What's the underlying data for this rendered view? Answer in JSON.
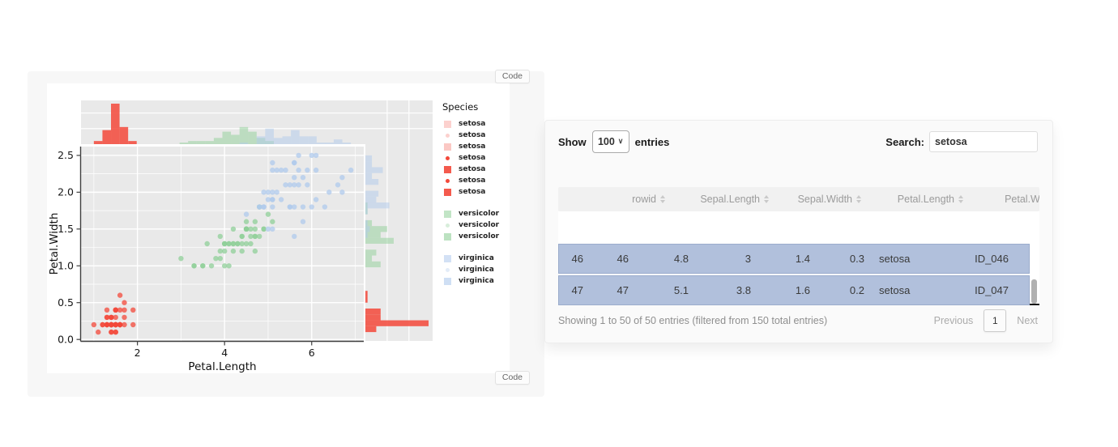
{
  "left_panel": {
    "code_button_label": "Code"
  },
  "chart_data": {
    "type": "scatter",
    "subtype": "scatter-with-marginal-histograms",
    "xlabel": "Petal.Length",
    "ylabel": "Petal.Width",
    "xlim": [
      0.705,
      7.195
    ],
    "ylim": [
      -0.02,
      2.62
    ],
    "x_ticks": [
      2,
      4,
      6
    ],
    "x_tick_labels": [
      "2",
      "4",
      "6"
    ],
    "x_minor": [
      1,
      3,
      5,
      7
    ],
    "y_ticks": [
      0.0,
      0.5,
      1.0,
      1.5,
      2.0,
      2.5
    ],
    "y_tick_labels": [
      "0.0",
      "0.5",
      "1.0",
      "1.5",
      "2.0",
      "2.5"
    ],
    "y_minor": [
      0.25,
      0.75,
      1.25,
      1.75,
      2.25
    ],
    "grid": true,
    "legend_title": "Species",
    "legend_position": "right",
    "colors": {
      "setosa": "#F3483A",
      "versicolor": "#8FCF98",
      "virginica": "#AFC9EC"
    },
    "marginals": {
      "bins": 30,
      "x_range": [
        1.0,
        6.9
      ],
      "y_range": [
        0.1,
        2.5
      ],
      "top_max_count": 26,
      "right_max_count": 29
    },
    "legend_items": [
      {
        "label": "setosa",
        "species": "setosa",
        "shape": "square",
        "opacity": 0.25,
        "gap_before": false
      },
      {
        "label": "setosa",
        "species": "setosa",
        "shape": "dot",
        "opacity": 0.25,
        "gap_before": false
      },
      {
        "label": "setosa",
        "species": "setosa",
        "shape": "square",
        "opacity": 0.3,
        "gap_before": false
      },
      {
        "label": "setosa",
        "species": "setosa",
        "shape": "dot",
        "opacity": 1,
        "gap_before": false
      },
      {
        "label": "setosa",
        "species": "setosa",
        "shape": "square",
        "opacity": 0.9,
        "gap_before": false
      },
      {
        "label": "setosa",
        "species": "setosa",
        "shape": "dot",
        "opacity": 1,
        "gap_before": false
      },
      {
        "label": "setosa",
        "species": "setosa",
        "shape": "square",
        "opacity": 0.9,
        "gap_before": false
      },
      {
        "label": "versicolor",
        "species": "versicolor",
        "shape": "square",
        "opacity": 0.55,
        "gap_before": true
      },
      {
        "label": "versicolor",
        "species": "versicolor",
        "shape": "dot",
        "opacity": 0.35,
        "gap_before": false
      },
      {
        "label": "versicolor",
        "species": "versicolor",
        "shape": "square",
        "opacity": 0.6,
        "gap_before": false
      },
      {
        "label": "virginica",
        "species": "virginica",
        "shape": "square",
        "opacity": 0.55,
        "gap_before": true
      },
      {
        "label": "virginica",
        "species": "virginica",
        "shape": "dot",
        "opacity": 0.35,
        "gap_before": false
      },
      {
        "label": "virginica",
        "species": "virginica",
        "shape": "square",
        "opacity": 0.6,
        "gap_before": false
      }
    ],
    "series": [
      {
        "name": "setosa",
        "points": [
          [
            1.4,
            0.2
          ],
          [
            1.4,
            0.2
          ],
          [
            1.3,
            0.2
          ],
          [
            1.5,
            0.2
          ],
          [
            1.4,
            0.2
          ],
          [
            1.7,
            0.4
          ],
          [
            1.4,
            0.3
          ],
          [
            1.5,
            0.2
          ],
          [
            1.4,
            0.2
          ],
          [
            1.5,
            0.1
          ],
          [
            1.5,
            0.2
          ],
          [
            1.6,
            0.2
          ],
          [
            1.4,
            0.1
          ],
          [
            1.1,
            0.1
          ],
          [
            1.2,
            0.2
          ],
          [
            1.5,
            0.4
          ],
          [
            1.3,
            0.4
          ],
          [
            1.4,
            0.3
          ],
          [
            1.7,
            0.3
          ],
          [
            1.5,
            0.3
          ],
          [
            1.7,
            0.2
          ],
          [
            1.5,
            0.4
          ],
          [
            1.0,
            0.2
          ],
          [
            1.7,
            0.5
          ],
          [
            1.9,
            0.2
          ],
          [
            1.6,
            0.2
          ],
          [
            1.6,
            0.4
          ],
          [
            1.5,
            0.2
          ],
          [
            1.4,
            0.2
          ],
          [
            1.6,
            0.2
          ],
          [
            1.6,
            0.2
          ],
          [
            1.5,
            0.4
          ],
          [
            1.5,
            0.1
          ],
          [
            1.4,
            0.2
          ],
          [
            1.5,
            0.2
          ],
          [
            1.2,
            0.2
          ],
          [
            1.3,
            0.2
          ],
          [
            1.4,
            0.1
          ],
          [
            1.3,
            0.2
          ],
          [
            1.5,
            0.2
          ],
          [
            1.3,
            0.3
          ],
          [
            1.3,
            0.3
          ],
          [
            1.3,
            0.2
          ],
          [
            1.6,
            0.6
          ],
          [
            1.9,
            0.4
          ],
          [
            1.4,
            0.3
          ],
          [
            1.6,
            0.2
          ],
          [
            1.4,
            0.2
          ],
          [
            1.5,
            0.2
          ],
          [
            1.4,
            0.2
          ]
        ]
      },
      {
        "name": "versicolor",
        "points": [
          [
            4.7,
            1.4
          ],
          [
            4.5,
            1.5
          ],
          [
            4.9,
            1.5
          ],
          [
            4.0,
            1.3
          ],
          [
            4.6,
            1.5
          ],
          [
            4.5,
            1.3
          ],
          [
            4.7,
            1.6
          ],
          [
            3.3,
            1.0
          ],
          [
            4.6,
            1.3
          ],
          [
            3.9,
            1.4
          ],
          [
            3.5,
            1.0
          ],
          [
            4.2,
            1.5
          ],
          [
            4.0,
            1.0
          ],
          [
            4.7,
            1.4
          ],
          [
            3.6,
            1.3
          ],
          [
            4.4,
            1.4
          ],
          [
            4.5,
            1.5
          ],
          [
            4.1,
            1.0
          ],
          [
            4.5,
            1.5
          ],
          [
            3.9,
            1.1
          ],
          [
            4.8,
            1.8
          ],
          [
            4.0,
            1.3
          ],
          [
            4.9,
            1.5
          ],
          [
            4.7,
            1.2
          ],
          [
            4.3,
            1.3
          ],
          [
            4.4,
            1.4
          ],
          [
            4.8,
            1.4
          ],
          [
            5.0,
            1.7
          ],
          [
            4.5,
            1.5
          ],
          [
            3.5,
            1.0
          ],
          [
            3.8,
            1.1
          ],
          [
            3.7,
            1.0
          ],
          [
            3.9,
            1.2
          ],
          [
            5.1,
            1.6
          ],
          [
            4.5,
            1.5
          ],
          [
            4.5,
            1.6
          ],
          [
            4.7,
            1.5
          ],
          [
            4.4,
            1.3
          ],
          [
            4.1,
            1.3
          ],
          [
            4.0,
            1.3
          ],
          [
            4.4,
            1.2
          ],
          [
            4.6,
            1.4
          ],
          [
            4.0,
            1.2
          ],
          [
            3.3,
            1.0
          ],
          [
            4.2,
            1.3
          ],
          [
            4.2,
            1.2
          ],
          [
            4.2,
            1.3
          ],
          [
            4.3,
            1.3
          ],
          [
            3.0,
            1.1
          ],
          [
            4.1,
            1.3
          ]
        ]
      },
      {
        "name": "virginica",
        "points": [
          [
            6.0,
            2.5
          ],
          [
            5.1,
            1.9
          ],
          [
            5.9,
            2.1
          ],
          [
            5.6,
            1.8
          ],
          [
            5.8,
            2.2
          ],
          [
            6.6,
            2.1
          ],
          [
            4.5,
            1.7
          ],
          [
            6.3,
            1.8
          ],
          [
            5.8,
            1.8
          ],
          [
            6.1,
            2.5
          ],
          [
            5.1,
            2.0
          ],
          [
            5.3,
            1.9
          ],
          [
            5.5,
            2.1
          ],
          [
            5.0,
            2.0
          ],
          [
            5.1,
            2.4
          ],
          [
            5.3,
            2.3
          ],
          [
            5.5,
            1.8
          ],
          [
            6.7,
            2.2
          ],
          [
            6.9,
            2.3
          ],
          [
            5.0,
            1.5
          ],
          [
            5.7,
            2.3
          ],
          [
            4.9,
            2.0
          ],
          [
            6.7,
            2.0
          ],
          [
            4.9,
            1.8
          ],
          [
            5.7,
            2.1
          ],
          [
            6.0,
            1.8
          ],
          [
            4.8,
            1.8
          ],
          [
            4.9,
            1.8
          ],
          [
            5.6,
            2.1
          ],
          [
            5.8,
            1.6
          ],
          [
            6.1,
            1.9
          ],
          [
            6.4,
            2.0
          ],
          [
            5.6,
            2.2
          ],
          [
            5.1,
            1.5
          ],
          [
            5.6,
            1.4
          ],
          [
            6.1,
            2.3
          ],
          [
            5.6,
            2.4
          ],
          [
            5.5,
            1.8
          ],
          [
            4.8,
            1.8
          ],
          [
            5.4,
            2.1
          ],
          [
            5.6,
            2.4
          ],
          [
            5.1,
            2.3
          ],
          [
            5.1,
            1.9
          ],
          [
            5.9,
            2.3
          ],
          [
            5.7,
            2.5
          ],
          [
            5.2,
            2.3
          ],
          [
            5.0,
            1.9
          ],
          [
            5.2,
            2.0
          ],
          [
            5.4,
            2.3
          ],
          [
            5.1,
            1.8
          ]
        ]
      }
    ]
  },
  "table_panel": {
    "show_label": "Show",
    "page_length": "100",
    "entries_label": "entries",
    "search_label": "Search:",
    "search_value": "setosa",
    "headers": [
      "",
      "rowid",
      "Sepal.Length",
      "Sepal.Width",
      "Petal.Length",
      "Petal.Width"
    ],
    "rows": [
      [
        "46",
        "46",
        "4.8",
        "3",
        "1.4",
        "0.3",
        "setosa",
        "ID_046"
      ],
      [
        "47",
        "47",
        "5.1",
        "3.8",
        "1.6",
        "0.2",
        "setosa",
        "ID_047"
      ]
    ],
    "selected_row_color": "#b1c0dc",
    "info": "Showing 1 to 50 of 50 entries (filtered from 150 total entries)",
    "pagination": {
      "previous": "Previous",
      "current": "1",
      "next": "Next"
    }
  }
}
